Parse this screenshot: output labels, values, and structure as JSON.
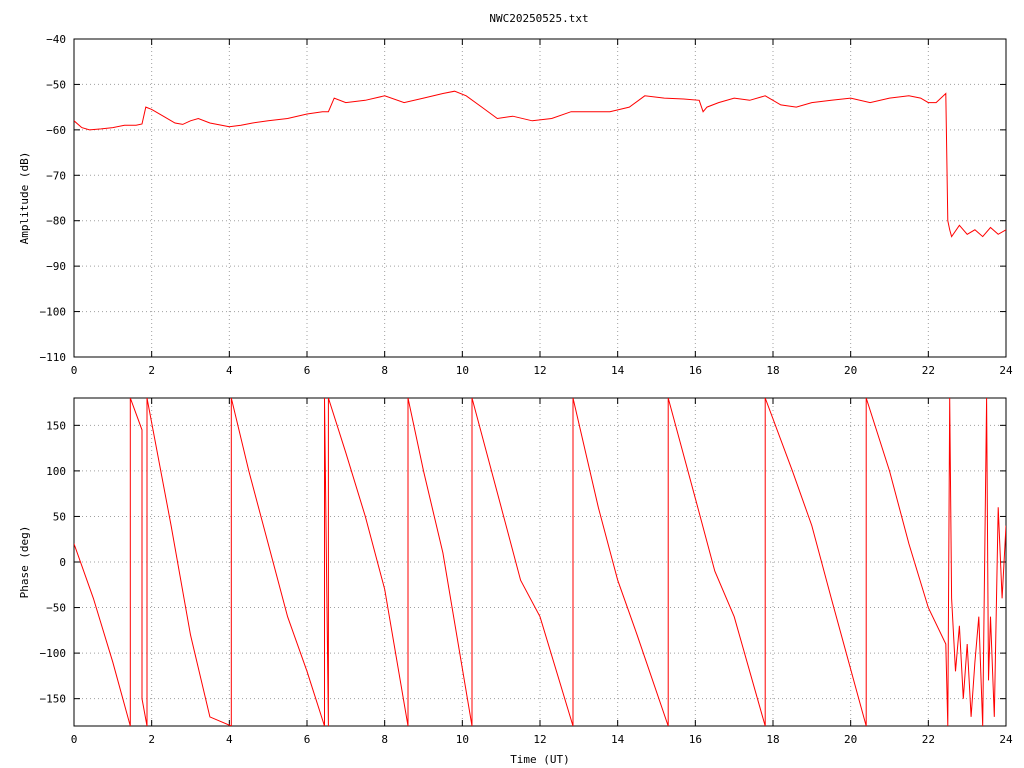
{
  "title": "NWC20250525.txt",
  "colors": {
    "series": "#ff0000",
    "frame": "#000000",
    "grid": "#a0a0a0",
    "background": "#ffffff"
  },
  "chart_data": [
    {
      "type": "line",
      "ylabel": "Amplitude (dB)",
      "xlabel": "",
      "xlim": [
        0,
        24
      ],
      "ylim": [
        -110,
        -40
      ],
      "x_ticks": [
        0,
        2,
        4,
        6,
        8,
        10,
        12,
        14,
        16,
        18,
        20,
        22,
        24
      ],
      "y_ticks": [
        -40,
        -50,
        -60,
        -70,
        -80,
        -90,
        -100,
        -110
      ],
      "grid": true,
      "series": [
        {
          "x": [
            0.0,
            0.2,
            0.4,
            0.7,
            1.0,
            1.3,
            1.6,
            1.75,
            1.85,
            2.0,
            2.3,
            2.6,
            2.8,
            3.0,
            3.2,
            3.5,
            3.8,
            4.0,
            4.3,
            4.6,
            5.0,
            5.5,
            6.0,
            6.4,
            6.55,
            6.7,
            7.0,
            7.5,
            8.0,
            8.5,
            9.0,
            9.5,
            9.8,
            10.1,
            10.5,
            10.9,
            11.3,
            11.8,
            12.3,
            12.8,
            13.3,
            13.8,
            14.3,
            14.7,
            15.2,
            15.7,
            16.1,
            16.2,
            16.3,
            16.6,
            17.0,
            17.4,
            17.8,
            18.2,
            18.6,
            19.0,
            19.5,
            20.0,
            20.5,
            21.0,
            21.5,
            21.8,
            22.0,
            22.2,
            22.45,
            22.5,
            22.55,
            22.6,
            22.8,
            23.0,
            23.2,
            23.4,
            23.6,
            23.8,
            24.0
          ],
          "y": [
            -58,
            -59.5,
            -60,
            -59.8,
            -59.5,
            -59,
            -59,
            -58.7,
            -55,
            -55.5,
            -57,
            -58.5,
            -58.8,
            -58,
            -57.5,
            -58.5,
            -59,
            -59.3,
            -59,
            -58.5,
            -58,
            -57.5,
            -56.5,
            -56,
            -56,
            -53,
            -54,
            -53.5,
            -52.5,
            -54,
            -53,
            -52,
            -51.5,
            -52.5,
            -55,
            -57.5,
            -57,
            -58,
            -57.5,
            -56,
            -56,
            -56,
            -55,
            -52.5,
            -53,
            -53.2,
            -53.5,
            -56,
            -55,
            -54,
            -53,
            -53.5,
            -52.5,
            -54.5,
            -55,
            -54,
            -53.5,
            -53,
            -54,
            -53,
            -52.5,
            -53,
            -54,
            -54,
            -52,
            -80,
            -82,
            -83.5,
            -81,
            -83,
            -82,
            -83.5,
            -81.5,
            -83,
            -82
          ]
        }
      ]
    },
    {
      "type": "line",
      "ylabel": "Phase (deg)",
      "xlabel": "Time (UT)",
      "xlim": [
        0,
        24
      ],
      "ylim": [
        -180,
        180
      ],
      "x_ticks": [
        0,
        2,
        4,
        6,
        8,
        10,
        12,
        14,
        16,
        18,
        20,
        22,
        24
      ],
      "y_ticks": [
        150,
        100,
        50,
        0,
        -50,
        -100,
        -150
      ],
      "grid": true,
      "series": [
        {
          "x": [
            0.0,
            0.5,
            1.0,
            1.45,
            1.45,
            1.75,
            1.75,
            1.88,
            1.88,
            2.5,
            3.0,
            3.5,
            4.05,
            4.05,
            4.5,
            5.0,
            5.5,
            6.0,
            6.45,
            6.45,
            6.55,
            6.55,
            7.0,
            7.5,
            8.0,
            8.6,
            8.6,
            9.0,
            9.5,
            10.25,
            10.25,
            11.0,
            11.5,
            12.0,
            12.85,
            12.85,
            13.5,
            14.0,
            14.5,
            15.3,
            15.3,
            16.0,
            16.5,
            17.0,
            17.8,
            17.8,
            18.5,
            19.0,
            19.5,
            20.4,
            20.4,
            21.0,
            21.5,
            22.0,
            22.45,
            22.5,
            22.55,
            22.6,
            22.7,
            22.8,
            22.9,
            23.0,
            23.1,
            23.2,
            23.3,
            23.4,
            23.5,
            23.55,
            23.6,
            23.7,
            23.8,
            23.9,
            24.0
          ],
          "y": [
            20,
            -40,
            -110,
            -180,
            180,
            145,
            -150,
            -180,
            180,
            40,
            -80,
            -170,
            -180,
            180,
            100,
            20,
            -60,
            -120,
            -180,
            180,
            -180,
            180,
            120,
            50,
            -30,
            -180,
            180,
            100,
            10,
            -180,
            180,
            60,
            -20,
            -60,
            -180,
            180,
            60,
            -20,
            -80,
            -180,
            180,
            70,
            -10,
            -60,
            -180,
            180,
            100,
            40,
            -40,
            -180,
            180,
            100,
            20,
            -50,
            -90,
            -180,
            180,
            -40,
            -120,
            -70,
            -150,
            -90,
            -170,
            -110,
            -60,
            -180,
            180,
            -130,
            -60,
            -170,
            60,
            -40,
            40
          ]
        }
      ]
    }
  ]
}
